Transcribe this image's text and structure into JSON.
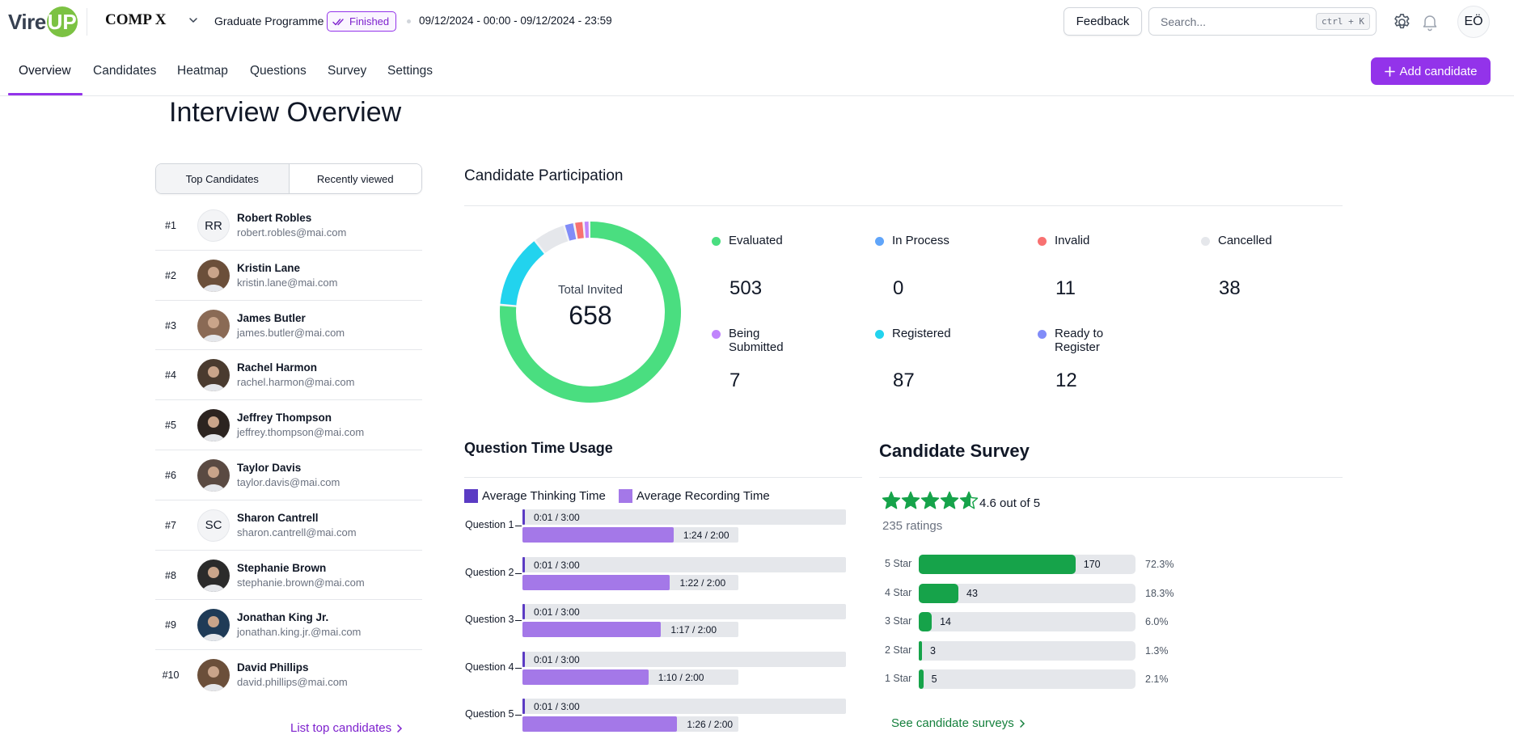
{
  "header": {
    "logo_text": "Vire",
    "logo_badge": "UP",
    "company": "COMP X",
    "programme": "Graduate Programme",
    "status": "Finished",
    "date_range": "09/12/2024 - 00:00 - 09/12/2024 - 23:59",
    "feedback_label": "Feedback",
    "search_placeholder": "Search...",
    "search_shortcut": "ctrl + K",
    "user_initials": "EÖ"
  },
  "nav": {
    "tabs": [
      "Overview",
      "Candidates",
      "Heatmap",
      "Questions",
      "Survey",
      "Settings"
    ],
    "active_tab": "Overview",
    "add_candidate_label": "Add candidate"
  },
  "page_title": "Interview Overview",
  "left_panel": {
    "segments": [
      "Top Candidates",
      "Recently viewed"
    ],
    "candidates": [
      {
        "rank": "#1",
        "name": "Robert Robles",
        "email": "robert.robles@mai.com",
        "initials": "RR"
      },
      {
        "rank": "#2",
        "name": "Kristin Lane",
        "email": "kristin.lane@mai.com"
      },
      {
        "rank": "#3",
        "name": "James Butler",
        "email": "james.butler@mai.com"
      },
      {
        "rank": "#4",
        "name": "Rachel Harmon",
        "email": "rachel.harmon@mai.com"
      },
      {
        "rank": "#5",
        "name": "Jeffrey Thompson",
        "email": "jeffrey.thompson@mai.com"
      },
      {
        "rank": "#6",
        "name": "Taylor Davis",
        "email": "taylor.davis@mai.com"
      },
      {
        "rank": "#7",
        "name": "Sharon Cantrell",
        "email": "sharon.cantrell@mai.com",
        "initials": "SC"
      },
      {
        "rank": "#8",
        "name": "Stephanie Brown",
        "email": "stephanie.brown@mai.com"
      },
      {
        "rank": "#9",
        "name": "Jonathan King Jr.",
        "email": "jonathan.king.jr.@mai.com"
      },
      {
        "rank": "#10",
        "name": "David Phillips",
        "email": "david.phillips@mai.com"
      }
    ],
    "list_link": "List top candidates"
  },
  "participation": {
    "title": "Candidate Participation",
    "total_label": "Total Invited",
    "total_value": "658",
    "stats": [
      {
        "label": "Evaluated",
        "value": 503,
        "color": "#4ade80"
      },
      {
        "label": "In Process",
        "value": 0,
        "color": "#60a5fa"
      },
      {
        "label": "Invalid",
        "value": 11,
        "color": "#f87171"
      },
      {
        "label": "Cancelled",
        "value": 38,
        "color": "#e5e7eb"
      },
      {
        "label": "Being Submitted",
        "value": 7,
        "color": "#c084fc"
      },
      {
        "label": "Registered",
        "value": 87,
        "color": "#22d3ee"
      },
      {
        "label": "Ready to Register",
        "value": 12,
        "color": "#818cf8"
      }
    ]
  },
  "question_time": {
    "title": "Question Time Usage",
    "legend": [
      {
        "label": "Average Thinking Time",
        "color": "#5b3bc4"
      },
      {
        "label": "Average Recording Time",
        "color": "#a478e8"
      }
    ],
    "thinking_max_sec": 180,
    "recording_max_sec": 120,
    "questions": [
      {
        "label": "Question 1",
        "thinking": "0:01 / 3:00",
        "thinking_sec": 1,
        "recording": "1:24 / 2:00",
        "recording_sec": 84
      },
      {
        "label": "Question 2",
        "thinking": "0:01 / 3:00",
        "thinking_sec": 1,
        "recording": "1:22 / 2:00",
        "recording_sec": 82
      },
      {
        "label": "Question 3",
        "thinking": "0:01 / 3:00",
        "thinking_sec": 1,
        "recording": "1:17 / 2:00",
        "recording_sec": 77
      },
      {
        "label": "Question 4",
        "thinking": "0:01 / 3:00",
        "thinking_sec": 1,
        "recording": "1:10 / 2:00",
        "recording_sec": 70
      },
      {
        "label": "Question 5",
        "thinking": "0:01 / 3:00",
        "thinking_sec": 1,
        "recording": "1:26 / 2:00",
        "recording_sec": 86
      }
    ]
  },
  "survey": {
    "title": "Candidate Survey",
    "rating": 4.6,
    "rating_text": "4.6 out of 5",
    "ratings_count": "235 ratings",
    "breakdown": [
      {
        "label": "5 Star",
        "count": 170,
        "pct": "72.3%",
        "pct_value": 72.3
      },
      {
        "label": "4 Star",
        "count": 43,
        "pct": "18.3%",
        "pct_value": 18.3
      },
      {
        "label": "3 Star",
        "count": 14,
        "pct": "6.0%",
        "pct_value": 6.0
      },
      {
        "label": "2 Star",
        "count": 3,
        "pct": "1.3%",
        "pct_value": 1.3
      },
      {
        "label": "1 Star",
        "count": 5,
        "pct": "2.1%",
        "pct_value": 2.1
      }
    ],
    "link_label": "See candidate surveys"
  }
}
